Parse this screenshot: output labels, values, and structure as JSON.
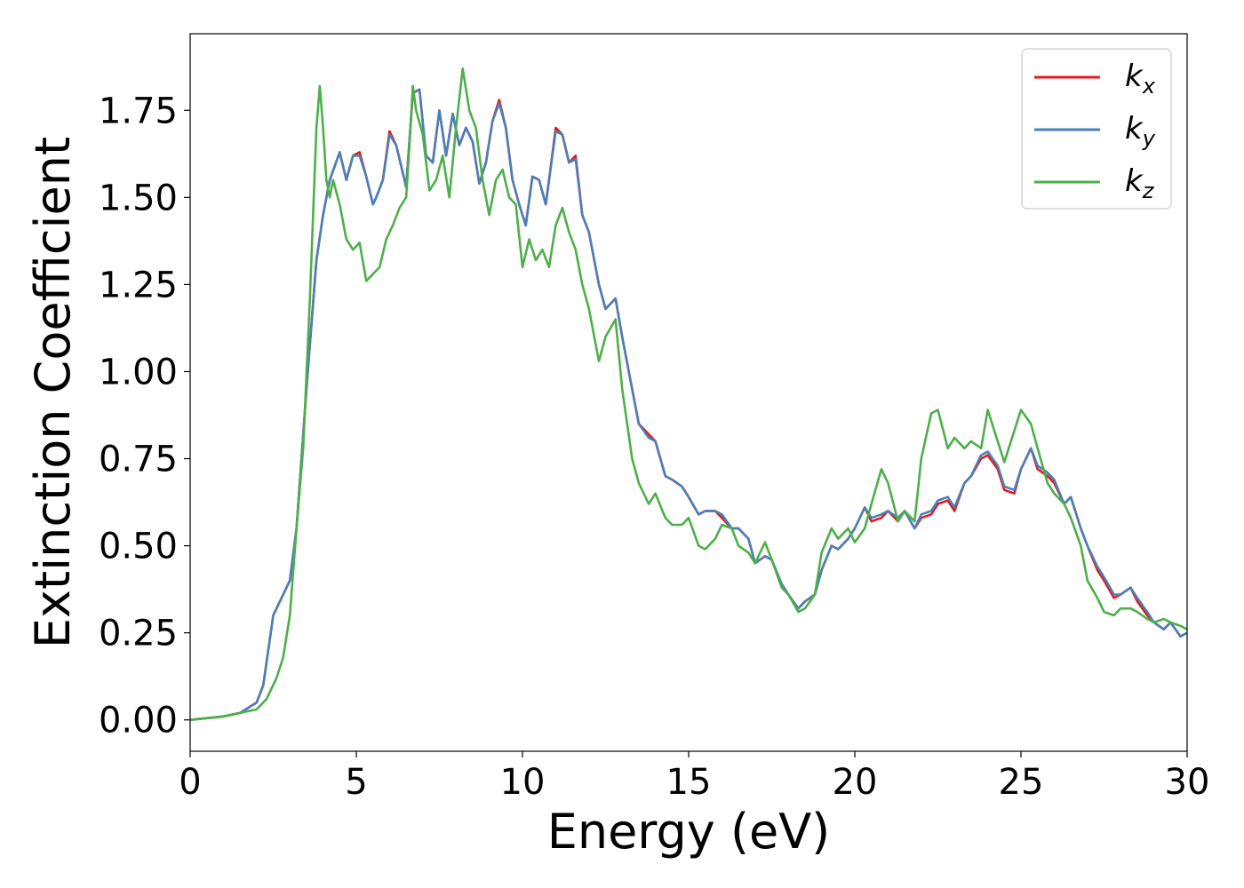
{
  "chart_data": {
    "type": "line",
    "xlabel": "Energy (eV)",
    "ylabel": "Extinction Coefficient",
    "xlim": [
      0,
      30
    ],
    "ylim": [
      -0.09,
      1.97
    ],
    "xticks": [
      0,
      5,
      10,
      15,
      20,
      25,
      30
    ],
    "xtick_labels": [
      "0",
      "5",
      "10",
      "15",
      "20",
      "25",
      "30"
    ],
    "yticks": [
      0,
      0.25,
      0.5,
      0.75,
      1.0,
      1.25,
      1.5,
      1.75
    ],
    "ytick_labels": [
      "0.00",
      "0.25",
      "0.50",
      "0.75",
      "1.00",
      "1.25",
      "1.50",
      "1.75"
    ],
    "grid": false,
    "legend_position": "top-right",
    "series": [
      {
        "name": "k",
        "subscript": "x",
        "color": "#e41a1c",
        "x": [
          0,
          1,
          1.5,
          2,
          2.2,
          2.5,
          2.8,
          3.0,
          3.2,
          3.5,
          3.8,
          4.0,
          4.2,
          4.5,
          4.7,
          4.9,
          5.1,
          5.3,
          5.5,
          5.6,
          5.8,
          6.0,
          6.2,
          6.5,
          6.7,
          6.9,
          7.1,
          7.3,
          7.5,
          7.7,
          7.9,
          8.1,
          8.3,
          8.5,
          8.7,
          8.9,
          9.1,
          9.3,
          9.5,
          9.7,
          9.9,
          10.1,
          10.3,
          10.5,
          10.7,
          10.8,
          11.0,
          11.2,
          11.4,
          11.6,
          11.8,
          12.0,
          12.3,
          12.5,
          12.8,
          13.0,
          13.3,
          13.5,
          13.8,
          14.0,
          14.3,
          14.5,
          14.8,
          15.0,
          15.3,
          15.5,
          15.8,
          16.0,
          16.3,
          16.5,
          16.8,
          17.0,
          17.3,
          17.5,
          17.8,
          18.0,
          18.3,
          18.5,
          18.8,
          19.0,
          19.3,
          19.5,
          19.8,
          20.0,
          20.3,
          20.5,
          20.8,
          21.0,
          21.3,
          21.5,
          21.8,
          22.0,
          22.3,
          22.5,
          22.8,
          23.0,
          23.3,
          23.5,
          23.8,
          24.0,
          24.3,
          24.5,
          24.8,
          25.0,
          25.3,
          25.5,
          25.8,
          26.0,
          26.3,
          26.5,
          26.8,
          27.0,
          27.3,
          27.5,
          27.8,
          28.0,
          28.3,
          28.5,
          28.8,
          29.0,
          29.3,
          29.5,
          29.8,
          30.0
        ],
        "y": [
          0.0,
          0.01,
          0.02,
          0.05,
          0.1,
          0.3,
          0.36,
          0.4,
          0.55,
          0.95,
          1.32,
          1.45,
          1.55,
          1.63,
          1.55,
          1.62,
          1.63,
          1.56,
          1.48,
          1.5,
          1.55,
          1.69,
          1.65,
          1.53,
          1.8,
          1.81,
          1.62,
          1.6,
          1.75,
          1.62,
          1.74,
          1.65,
          1.7,
          1.66,
          1.54,
          1.6,
          1.72,
          1.78,
          1.7,
          1.55,
          1.48,
          1.42,
          1.56,
          1.55,
          1.48,
          1.55,
          1.7,
          1.68,
          1.6,
          1.62,
          1.45,
          1.4,
          1.25,
          1.18,
          1.21,
          1.1,
          0.95,
          0.85,
          0.82,
          0.8,
          0.7,
          0.69,
          0.67,
          0.64,
          0.59,
          0.6,
          0.6,
          0.58,
          0.55,
          0.55,
          0.52,
          0.45,
          0.47,
          0.46,
          0.39,
          0.36,
          0.32,
          0.34,
          0.36,
          0.43,
          0.5,
          0.49,
          0.52,
          0.55,
          0.61,
          0.57,
          0.58,
          0.6,
          0.57,
          0.6,
          0.55,
          0.58,
          0.59,
          0.62,
          0.63,
          0.6,
          0.68,
          0.7,
          0.75,
          0.76,
          0.72,
          0.66,
          0.65,
          0.72,
          0.78,
          0.72,
          0.7,
          0.68,
          0.62,
          0.64,
          0.55,
          0.5,
          0.43,
          0.4,
          0.35,
          0.36,
          0.38,
          0.34,
          0.3,
          0.28,
          0.26,
          0.28,
          0.24,
          0.25
        ]
      },
      {
        "name": "k",
        "subscript": "y",
        "color": "#4a80b8",
        "x": [
          0,
          1,
          1.5,
          2,
          2.2,
          2.5,
          2.8,
          3.0,
          3.2,
          3.5,
          3.8,
          4.0,
          4.2,
          4.5,
          4.7,
          4.9,
          5.1,
          5.3,
          5.5,
          5.6,
          5.8,
          6.0,
          6.2,
          6.5,
          6.7,
          6.9,
          7.1,
          7.3,
          7.5,
          7.7,
          7.9,
          8.1,
          8.3,
          8.5,
          8.7,
          8.9,
          9.1,
          9.3,
          9.5,
          9.7,
          9.9,
          10.1,
          10.3,
          10.5,
          10.7,
          10.8,
          11.0,
          11.2,
          11.4,
          11.6,
          11.8,
          12.0,
          12.3,
          12.5,
          12.8,
          13.0,
          13.3,
          13.5,
          13.8,
          14.0,
          14.3,
          14.5,
          14.8,
          15.0,
          15.3,
          15.5,
          15.8,
          16.0,
          16.3,
          16.5,
          16.8,
          17.0,
          17.3,
          17.5,
          17.8,
          18.0,
          18.3,
          18.5,
          18.8,
          19.0,
          19.3,
          19.5,
          19.8,
          20.0,
          20.3,
          20.5,
          20.8,
          21.0,
          21.3,
          21.5,
          21.8,
          22.0,
          22.3,
          22.5,
          22.8,
          23.0,
          23.3,
          23.5,
          23.8,
          24.0,
          24.3,
          24.5,
          24.8,
          25.0,
          25.3,
          25.5,
          25.8,
          26.0,
          26.3,
          26.5,
          26.8,
          27.0,
          27.3,
          27.5,
          27.8,
          28.0,
          28.3,
          28.5,
          28.8,
          29.0,
          29.3,
          29.5,
          29.8,
          30.0
        ],
        "y": [
          0.0,
          0.01,
          0.02,
          0.05,
          0.1,
          0.3,
          0.36,
          0.4,
          0.55,
          0.95,
          1.32,
          1.45,
          1.55,
          1.63,
          1.55,
          1.62,
          1.62,
          1.56,
          1.48,
          1.5,
          1.55,
          1.68,
          1.65,
          1.53,
          1.8,
          1.81,
          1.62,
          1.6,
          1.75,
          1.62,
          1.74,
          1.65,
          1.7,
          1.66,
          1.54,
          1.6,
          1.72,
          1.77,
          1.7,
          1.55,
          1.48,
          1.42,
          1.56,
          1.55,
          1.48,
          1.55,
          1.69,
          1.68,
          1.6,
          1.61,
          1.45,
          1.4,
          1.25,
          1.18,
          1.21,
          1.1,
          0.95,
          0.85,
          0.81,
          0.8,
          0.7,
          0.69,
          0.67,
          0.64,
          0.59,
          0.6,
          0.6,
          0.59,
          0.55,
          0.55,
          0.52,
          0.45,
          0.47,
          0.46,
          0.39,
          0.36,
          0.32,
          0.34,
          0.36,
          0.43,
          0.5,
          0.49,
          0.52,
          0.55,
          0.61,
          0.58,
          0.59,
          0.6,
          0.58,
          0.6,
          0.55,
          0.59,
          0.6,
          0.63,
          0.64,
          0.61,
          0.68,
          0.7,
          0.76,
          0.77,
          0.73,
          0.67,
          0.66,
          0.72,
          0.78,
          0.73,
          0.71,
          0.69,
          0.62,
          0.64,
          0.55,
          0.5,
          0.44,
          0.41,
          0.36,
          0.36,
          0.38,
          0.35,
          0.31,
          0.28,
          0.26,
          0.28,
          0.24,
          0.25
        ]
      },
      {
        "name": "k",
        "subscript": "z",
        "color": "#4daf4a",
        "x": [
          0,
          1,
          1.5,
          2,
          2.3,
          2.6,
          2.8,
          3.0,
          3.2,
          3.4,
          3.6,
          3.8,
          3.9,
          4.0,
          4.1,
          4.2,
          4.3,
          4.5,
          4.7,
          4.9,
          5.1,
          5.3,
          5.5,
          5.7,
          5.9,
          6.1,
          6.3,
          6.5,
          6.6,
          6.7,
          6.8,
          7.0,
          7.2,
          7.4,
          7.6,
          7.8,
          8.0,
          8.2,
          8.4,
          8.6,
          8.8,
          9.0,
          9.2,
          9.4,
          9.6,
          9.8,
          10.0,
          10.2,
          10.4,
          10.6,
          10.8,
          11.0,
          11.2,
          11.4,
          11.6,
          11.8,
          12.0,
          12.3,
          12.5,
          12.8,
          13.0,
          13.3,
          13.5,
          13.8,
          14.0,
          14.3,
          14.5,
          14.8,
          15.0,
          15.3,
          15.5,
          15.8,
          16.0,
          16.3,
          16.5,
          16.8,
          17.0,
          17.3,
          17.5,
          17.8,
          18.0,
          18.3,
          18.5,
          18.8,
          19.0,
          19.3,
          19.5,
          19.8,
          20.0,
          20.3,
          20.5,
          20.8,
          21.0,
          21.3,
          21.5,
          21.8,
          22.0,
          22.3,
          22.5,
          22.8,
          23.0,
          23.3,
          23.5,
          23.8,
          24.0,
          24.3,
          24.5,
          24.8,
          25.0,
          25.3,
          25.5,
          25.8,
          26.0,
          26.3,
          26.5,
          26.8,
          27.0,
          27.3,
          27.5,
          27.8,
          28.0,
          28.3,
          28.5,
          28.8,
          29.0,
          29.3,
          29.5,
          29.8,
          30.0
        ],
        "y": [
          0.0,
          0.01,
          0.02,
          0.03,
          0.06,
          0.12,
          0.18,
          0.3,
          0.55,
          0.78,
          1.2,
          1.7,
          1.82,
          1.7,
          1.55,
          1.5,
          1.55,
          1.48,
          1.38,
          1.35,
          1.37,
          1.26,
          1.28,
          1.3,
          1.38,
          1.42,
          1.47,
          1.5,
          1.65,
          1.82,
          1.75,
          1.68,
          1.52,
          1.55,
          1.62,
          1.5,
          1.7,
          1.87,
          1.75,
          1.7,
          1.55,
          1.45,
          1.55,
          1.58,
          1.5,
          1.48,
          1.3,
          1.38,
          1.32,
          1.35,
          1.3,
          1.42,
          1.47,
          1.4,
          1.35,
          1.25,
          1.18,
          1.03,
          1.1,
          1.15,
          0.95,
          0.75,
          0.68,
          0.62,
          0.65,
          0.58,
          0.56,
          0.56,
          0.58,
          0.5,
          0.49,
          0.52,
          0.56,
          0.55,
          0.5,
          0.48,
          0.45,
          0.51,
          0.46,
          0.38,
          0.36,
          0.31,
          0.32,
          0.36,
          0.48,
          0.55,
          0.52,
          0.55,
          0.51,
          0.55,
          0.62,
          0.72,
          0.68,
          0.57,
          0.6,
          0.57,
          0.75,
          0.88,
          0.89,
          0.78,
          0.81,
          0.78,
          0.8,
          0.78,
          0.89,
          0.8,
          0.74,
          0.83,
          0.89,
          0.85,
          0.78,
          0.68,
          0.65,
          0.62,
          0.58,
          0.5,
          0.4,
          0.35,
          0.31,
          0.3,
          0.32,
          0.32,
          0.31,
          0.29,
          0.28,
          0.29,
          0.28,
          0.27,
          0.26
        ]
      }
    ]
  }
}
